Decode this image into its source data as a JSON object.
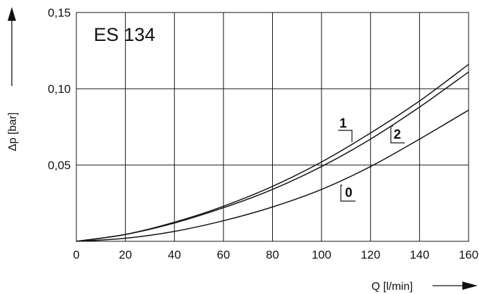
{
  "chart_data": {
    "type": "line",
    "title": "ES 134",
    "xlabel": "Q [l/min]",
    "ylabel": "Δp [bar]",
    "xlim": [
      0,
      160
    ],
    "ylim": [
      0,
      0.15
    ],
    "x_ticks": [
      "0",
      "20",
      "40",
      "60",
      "80",
      "100",
      "120",
      "140",
      "160"
    ],
    "y_ticks": [
      "0,05",
      "0,10",
      "0,15"
    ],
    "grid": true,
    "series": [
      {
        "name": "1",
        "x": [
          0,
          20,
          40,
          60,
          80,
          100,
          120,
          140,
          160
        ],
        "y": [
          0,
          0.0045,
          0.0125,
          0.023,
          0.036,
          0.052,
          0.071,
          0.092,
          0.116
        ]
      },
      {
        "name": "2",
        "x": [
          0,
          20,
          40,
          60,
          80,
          100,
          120,
          140,
          160
        ],
        "y": [
          0,
          0.0045,
          0.012,
          0.022,
          0.034,
          0.049,
          0.067,
          0.088,
          0.111
        ]
      },
      {
        "name": "0",
        "x": [
          0,
          20,
          40,
          60,
          80,
          100,
          120,
          140,
          160
        ],
        "y": [
          0,
          0.002,
          0.0065,
          0.0135,
          0.0225,
          0.034,
          0.049,
          0.067,
          0.086
        ]
      }
    ]
  }
}
